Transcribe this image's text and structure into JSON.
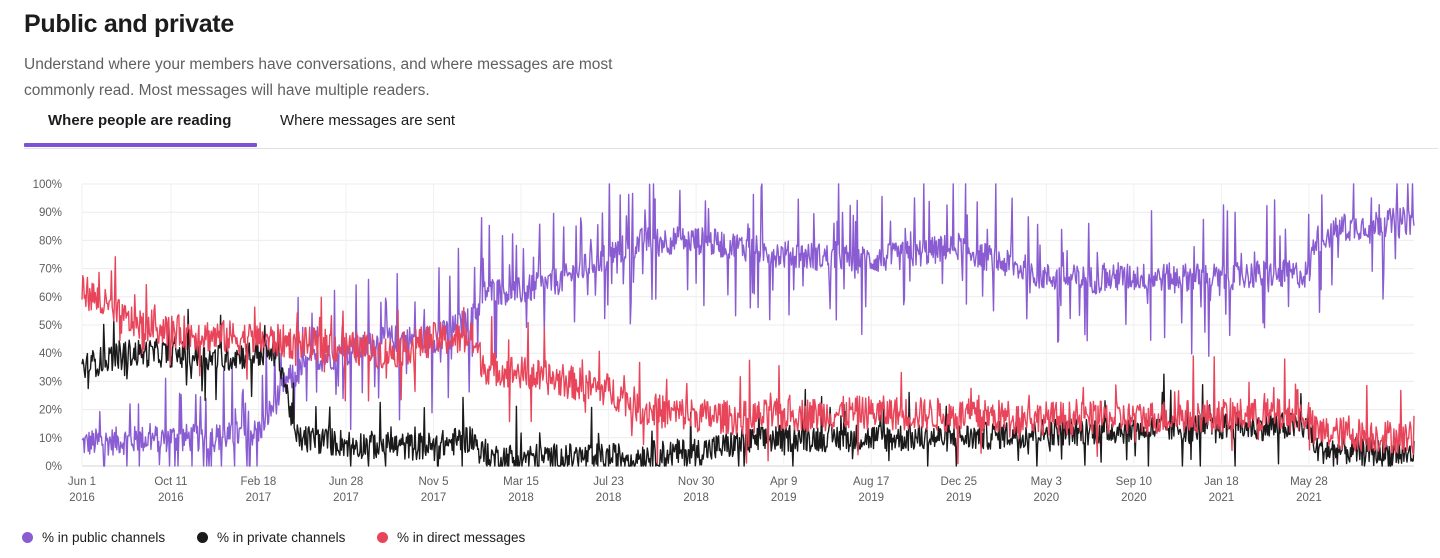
{
  "header": {
    "title": "Public and private",
    "subtitle": "Understand where your members have conversations, and where messages are most commonly read. Most messages will have multiple readers."
  },
  "tabs": [
    {
      "label": "Where people are reading",
      "active": true
    },
    {
      "label": "Where messages are sent",
      "active": false
    }
  ],
  "colors": {
    "accent": "#7c53d6",
    "public": "#8a5cd1",
    "private": "#1a1a1a",
    "direct": "#e8455a"
  },
  "chart_data": {
    "type": "line",
    "title": "",
    "xlabel": "",
    "ylabel": "",
    "ylim": [
      0,
      100
    ],
    "y_ticks": [
      "0%",
      "10%",
      "20%",
      "30%",
      "40%",
      "50%",
      "60%",
      "70%",
      "80%",
      "90%",
      "100%"
    ],
    "x_range": [
      "2016-06-01",
      "2021-10-31"
    ],
    "x_ticks": [
      {
        "date": "2016-06-01",
        "label1": "Jun 1",
        "label2": "2016"
      },
      {
        "date": "2016-10-11",
        "label1": "Oct 11",
        "label2": "2016"
      },
      {
        "date": "2017-02-18",
        "label1": "Feb 18",
        "label2": "2017"
      },
      {
        "date": "2017-06-28",
        "label1": "Jun 28",
        "label2": "2017"
      },
      {
        "date": "2017-11-05",
        "label1": "Nov 5",
        "label2": "2017"
      },
      {
        "date": "2018-03-15",
        "label1": "Mar 15",
        "label2": "2018"
      },
      {
        "date": "2018-07-23",
        "label1": "Jul 23",
        "label2": "2018"
      },
      {
        "date": "2018-11-30",
        "label1": "Nov 30",
        "label2": "2018"
      },
      {
        "date": "2019-04-09",
        "label1": "Apr 9",
        "label2": "2019"
      },
      {
        "date": "2019-08-17",
        "label1": "Aug 17",
        "label2": "2019"
      },
      {
        "date": "2019-12-25",
        "label1": "Dec 25",
        "label2": "2019"
      },
      {
        "date": "2020-05-03",
        "label1": "May 3",
        "label2": "2020"
      },
      {
        "date": "2020-09-10",
        "label1": "Sep 10",
        "label2": "2020"
      },
      {
        "date": "2021-01-18",
        "label1": "Jan 18",
        "label2": "2021"
      },
      {
        "date": "2021-05-28",
        "label1": "May 28",
        "label2": "2021"
      }
    ],
    "legend_position": "bottom-left",
    "grid": true,
    "series": [
      {
        "name": "% in public channels",
        "color": "#8a5cd1",
        "x": [
          "2016-06-01",
          "2016-08-01",
          "2016-10-11",
          "2016-12-15",
          "2017-02-18",
          "2017-04-01",
          "2017-05-15",
          "2017-06-28",
          "2017-09-01",
          "2017-11-05",
          "2018-01-01",
          "2018-01-20",
          "2018-03-15",
          "2018-05-15",
          "2018-07-23",
          "2018-09-15",
          "2018-11-30",
          "2019-02-01",
          "2019-04-09",
          "2019-06-15",
          "2019-08-17",
          "2019-10-15",
          "2019-12-25",
          "2020-02-15",
          "2020-05-03",
          "2020-07-15",
          "2020-09-10",
          "2020-11-15",
          "2021-01-18",
          "2021-03-15",
          "2021-05-28",
          "2021-06-05",
          "2021-07-15",
          "2021-09-01",
          "2021-10-31"
        ],
        "values": [
          8,
          9,
          10,
          10,
          12,
          30,
          38,
          40,
          45,
          45,
          52,
          62,
          62,
          66,
          75,
          80,
          80,
          78,
          75,
          74,
          73,
          75,
          78,
          73,
          67,
          66,
          67,
          67,
          67,
          68,
          68,
          80,
          84,
          86,
          87
        ]
      },
      {
        "name": "% in private channels",
        "color": "#1a1a1a",
        "x": [
          "2016-06-01",
          "2016-08-01",
          "2016-10-11",
          "2016-12-15",
          "2017-02-18",
          "2017-03-20",
          "2017-04-15",
          "2017-06-28",
          "2017-09-01",
          "2017-11-05",
          "2018-01-01",
          "2018-01-20",
          "2018-03-15",
          "2018-07-23",
          "2018-11-30",
          "2019-02-01",
          "2019-04-09",
          "2019-08-17",
          "2019-12-25",
          "2020-05-03",
          "2020-09-10",
          "2021-01-18",
          "2021-05-28",
          "2021-06-05",
          "2021-10-31"
        ],
        "values": [
          35,
          40,
          40,
          38,
          40,
          40,
          10,
          8,
          7,
          7,
          10,
          3,
          3,
          3,
          5,
          8,
          10,
          10,
          10,
          12,
          13,
          14,
          14,
          6,
          4
        ]
      },
      {
        "name": "% in direct messages",
        "color": "#e8455a",
        "x": [
          "2016-06-01",
          "2016-08-01",
          "2016-10-11",
          "2016-12-15",
          "2017-02-18",
          "2017-06-28",
          "2017-09-01",
          "2017-11-05",
          "2018-01-01",
          "2018-01-20",
          "2018-03-15",
          "2018-07-23",
          "2018-09-15",
          "2018-11-30",
          "2019-02-01",
          "2019-04-09",
          "2019-08-17",
          "2019-12-25",
          "2020-05-03",
          "2020-09-10",
          "2021-01-18",
          "2021-05-28",
          "2021-06-05",
          "2021-10-31"
        ],
        "values": [
          63,
          52,
          48,
          46,
          45,
          42,
          40,
          45,
          45,
          35,
          33,
          27,
          20,
          18,
          17,
          18,
          19,
          18,
          17,
          17,
          18,
          18,
          12,
          10
        ]
      }
    ]
  }
}
